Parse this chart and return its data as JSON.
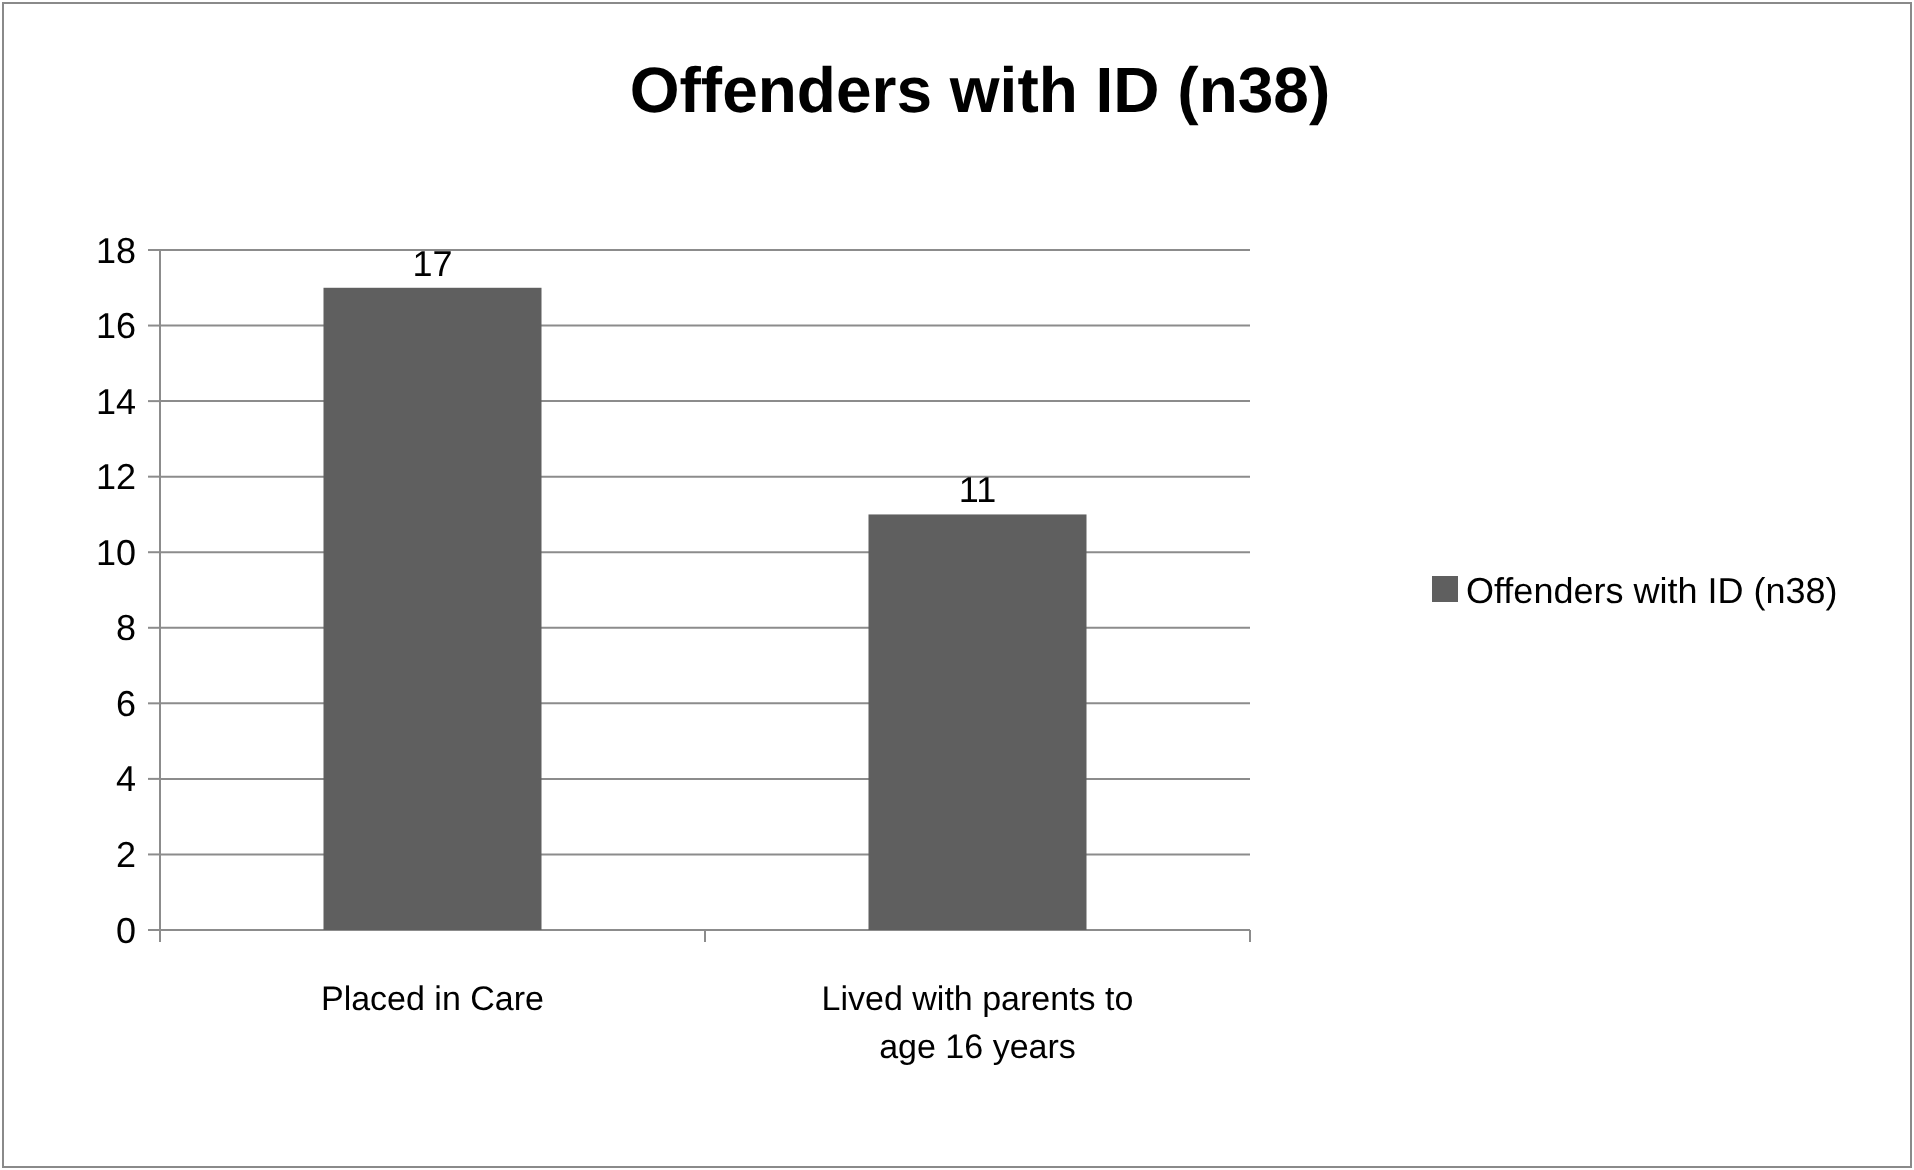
{
  "chart_data": {
    "type": "bar",
    "title": "Offenders with ID (n38)",
    "categories": [
      "Placed in Care",
      "Lived with parents to age 16 years"
    ],
    "series": [
      {
        "name": "Offenders with ID (n38)",
        "color": "#5f5f5f",
        "values": [
          17,
          11
        ]
      }
    ],
    "ylim": [
      0,
      18
    ],
    "yticks": [
      0,
      2,
      4,
      6,
      8,
      10,
      12,
      14,
      16,
      18
    ],
    "grid": "y",
    "legend": "right",
    "data_labels": true
  }
}
